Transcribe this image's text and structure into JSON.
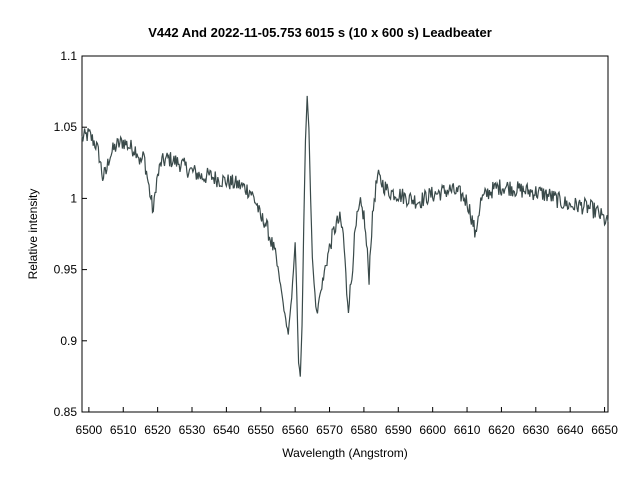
{
  "chart_data": {
    "type": "line",
    "title": "V442 And   2022-11-05.753   6015 s (10 x 600 s)   Leadbeater",
    "xlabel": "Wavelength (Angstrom)",
    "ylabel": "Relative intensity",
    "xlim": [
      6498,
      6651
    ],
    "ylim": [
      0.85,
      1.1
    ],
    "x_ticks": [
      6500,
      6510,
      6520,
      6530,
      6540,
      6550,
      6560,
      6570,
      6580,
      6590,
      6600,
      6610,
      6620,
      6630,
      6640,
      6650
    ],
    "y_ticks": [
      0.85,
      0.9,
      0.95,
      1,
      1.05,
      1.1
    ],
    "x_tick_labels": [
      "6500",
      "6510",
      "6520",
      "6530",
      "6540",
      "6550",
      "6560",
      "6570",
      "6580",
      "6590",
      "6600",
      "6610",
      "6620",
      "6630",
      "6640",
      "6650"
    ],
    "y_tick_labels": [
      "0.85",
      "0.9",
      "0.95",
      "1",
      "1.05",
      "1.1"
    ],
    "grid": false,
    "line_color": "#3a4a4a",
    "series": [
      {
        "points": [
          [
            6498,
            1.042
          ],
          [
            6500,
            1.045
          ],
          [
            6502,
            1.038
          ],
          [
            6503,
            1.03
          ],
          [
            6504,
            1.015
          ],
          [
            6505,
            1.018
          ],
          [
            6506,
            1.03
          ],
          [
            6508,
            1.037
          ],
          [
            6510,
            1.04
          ],
          [
            6512,
            1.036
          ],
          [
            6514,
            1.034
          ],
          [
            6515,
            1.025
          ],
          [
            6516,
            1.03
          ],
          [
            6517,
            1.015
          ],
          [
            6518,
            1.0
          ],
          [
            6518.8,
            0.99
          ],
          [
            6519.5,
            1.01
          ],
          [
            6521,
            1.025
          ],
          [
            6523,
            1.028
          ],
          [
            6525,
            1.026
          ],
          [
            6527,
            1.024
          ],
          [
            6529,
            1.02
          ],
          [
            6531,
            1.018
          ],
          [
            6533,
            1.015
          ],
          [
            6535,
            1.016
          ],
          [
            6537,
            1.014
          ],
          [
            6540,
            1.012
          ],
          [
            6543,
            1.01
          ],
          [
            6545,
            1.008
          ],
          [
            6547,
            1.005
          ],
          [
            6548,
            1.0
          ],
          [
            6549,
            0.995
          ],
          [
            6550,
            0.985
          ],
          [
            6551,
            0.985
          ],
          [
            6552,
            0.978
          ],
          [
            6553,
            0.97
          ],
          [
            6554,
            0.962
          ],
          [
            6555,
            0.95
          ],
          [
            6556,
            0.935
          ],
          [
            6557,
            0.918
          ],
          [
            6558,
            0.905
          ],
          [
            6559,
            0.93
          ],
          [
            6560,
            0.97
          ],
          [
            6560.5,
            0.93
          ],
          [
            6561,
            0.885
          ],
          [
            6561.5,
            0.874
          ],
          [
            6562,
            0.91
          ],
          [
            6562.5,
            0.98
          ],
          [
            6563,
            1.04
          ],
          [
            6563.5,
            1.073
          ],
          [
            6564,
            1.05
          ],
          [
            6564.5,
            1.0
          ],
          [
            6565,
            0.96
          ],
          [
            6565.5,
            0.94
          ],
          [
            6566,
            0.925
          ],
          [
            6566.5,
            0.92
          ],
          [
            6567,
            0.93
          ],
          [
            6568,
            0.94
          ],
          [
            6569,
            0.955
          ],
          [
            6570,
            0.965
          ],
          [
            6571,
            0.975
          ],
          [
            6572,
            0.982
          ],
          [
            6573,
            0.985
          ],
          [
            6574,
            0.975
          ],
          [
            6574.5,
            0.955
          ],
          [
            6575,
            0.935
          ],
          [
            6575.5,
            0.925
          ],
          [
            6576.5,
            0.945
          ],
          [
            6577,
            0.965
          ],
          [
            6578,
            0.985
          ],
          [
            6579,
            0.995
          ],
          [
            6580,
            0.988
          ],
          [
            6581,
            0.96
          ],
          [
            6581.5,
            0.945
          ],
          [
            6582,
            0.97
          ],
          [
            6583,
            1.0
          ],
          [
            6584,
            1.015
          ],
          [
            6585,
            1.012
          ],
          [
            6587,
            1.005
          ],
          [
            6590,
            1.003
          ],
          [
            6593,
            1.0
          ],
          [
            6596,
            0.998
          ],
          [
            6599,
            1.002
          ],
          [
            6602,
            1.004
          ],
          [
            6605,
            1.006
          ],
          [
            6608,
            1.003
          ],
          [
            6610,
            0.998
          ],
          [
            6611,
            0.99
          ],
          [
            6612,
            0.98
          ],
          [
            6612.5,
            0.972
          ],
          [
            6613,
            0.985
          ],
          [
            6614,
            0.998
          ],
          [
            6616,
            1.004
          ],
          [
            6619,
            1.008
          ],
          [
            6622,
            1.008
          ],
          [
            6625,
            1.006
          ],
          [
            6628,
            1.005
          ],
          [
            6631,
            1.004
          ],
          [
            6634,
            1.002
          ],
          [
            6637,
            0.998
          ],
          [
            6640,
            0.995
          ],
          [
            6643,
            0.995
          ],
          [
            6646,
            0.993
          ],
          [
            6648,
            0.99
          ],
          [
            6650,
            0.985
          ],
          [
            6651,
            0.982
          ]
        ]
      }
    ]
  }
}
